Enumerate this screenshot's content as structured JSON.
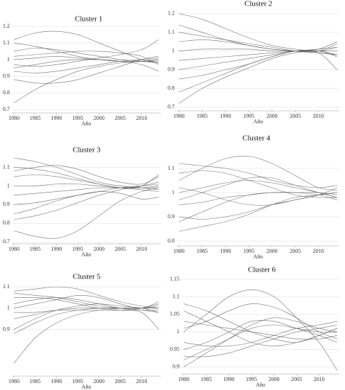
{
  "chart_data": [
    {
      "type": "line",
      "title": "Cluster 1",
      "xlabel": "Año",
      "color": "#555555",
      "x": [
        1980,
        1985,
        1990,
        1995,
        2000,
        2005,
        2010,
        2014
      ],
      "xlim": [
        1979.5,
        2014.5
      ],
      "xticks": [
        1980,
        1985,
        1990,
        1995,
        2000,
        2005,
        2010
      ],
      "ylim": [
        0.68,
        1.2
      ],
      "yticks": [
        0.7,
        0.8,
        0.9,
        1,
        1.1,
        1.2
      ],
      "grid": true,
      "series": [
        {
          "values": [
            0.74,
            0.82,
            0.88,
            0.93,
            0.96,
            0.98,
            0.99,
            1.0
          ]
        },
        {
          "values": [
            1.12,
            1.16,
            1.17,
            1.15,
            1.1,
            1.05,
            1.0,
            0.98
          ]
        },
        {
          "values": [
            1.05,
            1.07,
            1.06,
            1.04,
            1.02,
            1.0,
            0.99,
            0.98
          ]
        },
        {
          "values": [
            0.93,
            0.92,
            0.93,
            0.95,
            0.97,
            0.99,
            1.0,
            1.01
          ]
        },
        {
          "values": [
            1.0,
            1.01,
            1.02,
            1.01,
            1.0,
            0.99,
            0.99,
            0.99
          ]
        },
        {
          "values": [
            0.88,
            0.86,
            0.86,
            0.88,
            0.92,
            0.96,
            1.0,
            1.02
          ]
        },
        {
          "values": [
            1.1,
            1.08,
            1.05,
            1.02,
            1.0,
            0.99,
            0.99,
            1.0
          ]
        },
        {
          "values": [
            0.97,
            0.96,
            0.97,
            0.99,
            1.01,
            1.03,
            1.06,
            1.12
          ]
        },
        {
          "values": [
            1.02,
            1.03,
            1.04,
            1.05,
            1.05,
            1.04,
            1.02,
            0.97
          ]
        },
        {
          "values": [
            0.95,
            0.97,
            0.99,
            1.0,
            1.0,
            0.99,
            0.97,
            0.93
          ]
        }
      ]
    },
    {
      "type": "line",
      "title": "Cluster 2",
      "xlabel": "Año",
      "color": "#555555",
      "x": [
        1980,
        1985,
        1990,
        1995,
        2000,
        2005,
        2010,
        2014
      ],
      "xlim": [
        1979.5,
        2014.5
      ],
      "xticks": [
        1980,
        1985,
        1990,
        1995,
        2000,
        2005,
        2010
      ],
      "ylim": [
        0.68,
        1.21
      ],
      "yticks": [
        0.7,
        0.8,
        0.9,
        1,
        1.1,
        1.2
      ],
      "grid": true,
      "series": [
        {
          "values": [
            0.72,
            0.8,
            0.86,
            0.91,
            0.96,
            0.99,
            1.0,
            0.97
          ]
        },
        {
          "values": [
            1.2,
            1.17,
            1.12,
            1.07,
            1.03,
            1.01,
            1.0,
            1.02
          ]
        },
        {
          "values": [
            1.1,
            1.08,
            1.06,
            1.04,
            1.02,
            1.0,
            0.99,
            0.98
          ]
        },
        {
          "values": [
            0.9,
            0.92,
            0.94,
            0.96,
            0.98,
            1.0,
            1.01,
            1.02
          ]
        },
        {
          "values": [
            1.0,
            1.01,
            1.01,
            1.01,
            1.0,
            1.0,
            1.0,
            1.0
          ]
        },
        {
          "values": [
            0.85,
            0.87,
            0.9,
            0.93,
            0.97,
            1.0,
            0.99,
            0.9
          ]
        },
        {
          "values": [
            1.05,
            1.06,
            1.05,
            1.03,
            1.01,
            1.0,
            1.0,
            1.04
          ]
        },
        {
          "values": [
            0.95,
            0.96,
            0.97,
            0.98,
            0.99,
            1.0,
            1.01,
            1.05
          ]
        },
        {
          "values": [
            1.14,
            1.1,
            1.06,
            1.03,
            1.01,
            1.0,
            0.99,
            0.98
          ]
        },
        {
          "values": [
            0.78,
            0.83,
            0.88,
            0.93,
            0.97,
            1.0,
            1.0,
            0.98
          ]
        }
      ]
    },
    {
      "type": "line",
      "title": "Cluster 3",
      "xlabel": "Año",
      "color": "#555555",
      "x": [
        1980,
        1985,
        1990,
        1995,
        2000,
        2005,
        2010,
        2014
      ],
      "xlim": [
        1979.5,
        2014.5
      ],
      "xticks": [
        1980,
        1985,
        1990,
        1995,
        2000,
        2005,
        2010
      ],
      "ylim": [
        0.69,
        1.15
      ],
      "yticks": [
        0.7,
        0.8,
        0.9,
        1,
        1.1
      ],
      "grid": true,
      "series": [
        {
          "values": [
            0.76,
            0.73,
            0.72,
            0.76,
            0.84,
            0.92,
            0.97,
            0.99
          ]
        },
        {
          "values": [
            1.15,
            1.13,
            1.1,
            1.06,
            1.02,
            1.0,
            0.99,
            0.98
          ]
        },
        {
          "values": [
            1.05,
            1.06,
            1.05,
            1.03,
            1.01,
            0.99,
            0.99,
            1.0
          ]
        },
        {
          "values": [
            0.9,
            0.91,
            0.93,
            0.95,
            0.97,
            0.99,
            1.0,
            1.01
          ]
        },
        {
          "values": [
            1.0,
            1.0,
            1.01,
            1.01,
            1.0,
            0.99,
            0.99,
            0.99
          ]
        },
        {
          "values": [
            0.82,
            0.84,
            0.87,
            0.91,
            0.95,
            0.98,
            1.0,
            1.02
          ]
        },
        {
          "values": [
            1.1,
            1.09,
            1.07,
            1.04,
            1.01,
            0.99,
            0.98,
            0.97
          ]
        },
        {
          "values": [
            0.95,
            0.96,
            0.97,
            0.98,
            0.99,
            0.99,
            1.0,
            1.06
          ]
        },
        {
          "values": [
            0.85,
            0.88,
            0.92,
            0.95,
            0.97,
            0.96,
            0.93,
            0.94
          ]
        },
        {
          "values": [
            1.08,
            1.1,
            1.11,
            1.09,
            1.05,
            1.02,
            1.01,
            1.05
          ]
        }
      ]
    },
    {
      "type": "line",
      "title": "Cluster 4",
      "xlabel": "Año",
      "color": "#555555",
      "x": [
        1980,
        1985,
        1990,
        1995,
        2000,
        2005,
        2010,
        2014
      ],
      "xlim": [
        1979.5,
        2014.5
      ],
      "xticks": [
        1980,
        1985,
        1990,
        1995,
        2000,
        2005,
        2010
      ],
      "ylim": [
        0.78,
        1.18
      ],
      "yticks": [
        0.8,
        0.9,
        1,
        1.1
      ],
      "grid": true,
      "series": [
        {
          "values": [
            0.84,
            0.86,
            0.88,
            0.91,
            0.95,
            0.98,
            0.99,
            1.0
          ]
        },
        {
          "values": [
            1.05,
            1.1,
            1.14,
            1.15,
            1.12,
            1.07,
            1.02,
            1.01
          ]
        },
        {
          "values": [
            1.12,
            1.11,
            1.1,
            1.08,
            1.05,
            1.03,
            1.02,
            1.03
          ]
        },
        {
          "values": [
            0.95,
            0.96,
            0.98,
            0.99,
            1.0,
            1.0,
            1.0,
            0.99
          ]
        },
        {
          "values": [
            1.0,
            1.02,
            1.04,
            1.05,
            1.04,
            1.02,
            1.0,
            0.98
          ]
        },
        {
          "values": [
            0.9,
            0.89,
            0.9,
            0.92,
            0.95,
            0.97,
            0.99,
            1.0
          ]
        },
        {
          "values": [
            1.08,
            1.09,
            1.08,
            1.05,
            1.02,
            0.99,
            0.98,
            0.98
          ]
        },
        {
          "values": [
            0.88,
            0.92,
            0.96,
            0.99,
            1.0,
            1.0,
            0.99,
            0.97
          ]
        },
        {
          "values": [
            0.97,
            1.0,
            1.03,
            1.06,
            1.06,
            1.03,
            1.0,
            0.98
          ]
        },
        {
          "values": [
            1.02,
            1.0,
            0.97,
            0.95,
            0.95,
            0.97,
            0.99,
            1.02
          ]
        }
      ]
    },
    {
      "type": "line",
      "title": "Cluster 5",
      "xlabel": "Año",
      "color": "#555555",
      "x": [
        1980,
        1985,
        1990,
        1995,
        2000,
        2005,
        2010,
        2014
      ],
      "xlim": [
        1979.5,
        2014.5
      ],
      "xticks": [
        1980,
        1985,
        1990,
        1995,
        2000,
        2005,
        2010
      ],
      "ylim": [
        0.68,
        1.12
      ],
      "yticks": [
        0.9,
        1,
        1.1
      ],
      "grid": true,
      "series": [
        {
          "values": [
            0.74,
            0.86,
            0.93,
            0.97,
            0.99,
            1.0,
            1.0,
            1.0
          ]
        },
        {
          "values": [
            1.08,
            1.09,
            1.1,
            1.09,
            1.06,
            1.03,
            1.01,
            1.0
          ]
        },
        {
          "values": [
            1.02,
            1.04,
            1.05,
            1.04,
            1.02,
            1.0,
            0.99,
            0.99
          ]
        },
        {
          "values": [
            0.95,
            0.97,
            0.99,
            1.0,
            1.0,
            1.0,
            1.0,
            1.01
          ]
        },
        {
          "values": [
            1.05,
            1.05,
            1.04,
            1.02,
            1.0,
            0.99,
            0.98,
            0.9
          ]
        },
        {
          "values": [
            0.9,
            0.95,
            0.99,
            1.01,
            1.02,
            1.01,
            1.0,
            0.98
          ]
        },
        {
          "values": [
            1.0,
            1.02,
            1.04,
            1.06,
            1.05,
            1.02,
            1.0,
            1.03
          ]
        },
        {
          "values": [
            0.88,
            0.93,
            0.97,
            0.99,
            1.0,
            1.0,
            1.0,
            1.0
          ]
        },
        {
          "values": [
            0.98,
            0.98,
            0.99,
            0.99,
            0.99,
            0.99,
            1.0,
            1.02
          ]
        },
        {
          "values": [
            1.07,
            1.06,
            1.05,
            1.03,
            1.01,
            1.0,
            0.99,
            0.98
          ]
        }
      ]
    },
    {
      "type": "line",
      "title": "Cluster 6",
      "xlabel": "Año",
      "color": "#555555",
      "x": [
        1980,
        1985,
        1990,
        1995,
        2000,
        2005,
        2010,
        2014
      ],
      "xlim": [
        1979.5,
        2014.5
      ],
      "xticks": [
        1980,
        1985,
        1990,
        1995,
        2000,
        2005,
        2010
      ],
      "ylim": [
        0.88,
        1.16
      ],
      "yticks": [
        0.9,
        0.95,
        1,
        1.05,
        1.1,
        1.15
      ],
      "grid": true,
      "series": [
        {
          "values": [
            1.0,
            1.05,
            1.1,
            1.12,
            1.1,
            1.04,
            0.97,
            0.89
          ]
        },
        {
          "values": [
            0.92,
            0.95,
            0.98,
            1.01,
            1.02,
            1.01,
            1.0,
            1.0
          ]
        },
        {
          "values": [
            1.08,
            1.06,
            1.03,
            1.0,
            0.98,
            0.97,
            0.99,
            1.01
          ]
        },
        {
          "values": [
            0.9,
            0.94,
            0.98,
            1.02,
            1.04,
            1.03,
            1.01,
            1.0
          ]
        },
        {
          "values": [
            1.06,
            1.03,
            1.0,
            0.97,
            0.96,
            0.97,
            0.99,
            1.01
          ]
        },
        {
          "values": [
            0.95,
            0.97,
            1.0,
            1.03,
            1.03,
            1.01,
            0.99,
            0.97
          ]
        },
        {
          "values": [
            1.03,
            1.02,
            1.01,
            1.0,
            0.99,
            0.98,
            0.98,
            0.99
          ]
        },
        {
          "values": [
            0.97,
            0.96,
            0.96,
            0.97,
            0.99,
            1.01,
            1.02,
            1.03
          ]
        },
        {
          "values": [
            1.01,
            1.03,
            1.06,
            1.08,
            1.07,
            1.04,
            1.0,
            0.98
          ]
        },
        {
          "values": [
            0.93,
            0.93,
            0.94,
            0.96,
            0.98,
            1.0,
            1.01,
            1.02
          ]
        }
      ]
    }
  ]
}
